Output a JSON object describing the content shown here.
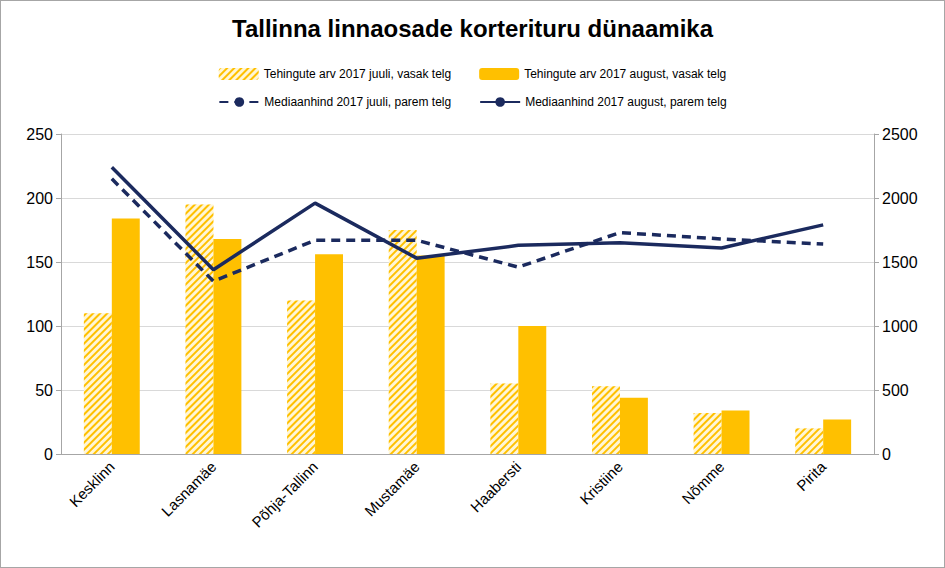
{
  "chart_data": {
    "type": "bar",
    "title": "Tallinna linnaosade korterituru dünaamika",
    "categories": [
      "Kesklinn",
      "Lasnamäe",
      "Põhja-Tallinn",
      "Mustamäe",
      "Haabersti",
      "Kristiine",
      "Nõmme",
      "Pirita"
    ],
    "series": [
      {
        "name": "Tehingute arv 2017 juuli, vasak telg",
        "type": "bar",
        "color": "#FFC000",
        "values": [
          110,
          195,
          120,
          175,
          55,
          53,
          32,
          20
        ]
      },
      {
        "name": "Tehingute arv 2017 august, vasak telg",
        "type": "bar",
        "color": "#FFC000",
        "values": [
          184,
          168,
          156,
          155,
          100,
          44,
          34,
          27
        ]
      },
      {
        "name": "Mediaanhind 2017 juuli, parem telg",
        "type": "line",
        "axis": "y2",
        "color": "#1B2A5E",
        "line_style": "dashed",
        "values": [
          2150,
          1350,
          1670,
          1670,
          1460,
          1730,
          1680,
          1640
        ]
      },
      {
        "name": "Mediaanhind 2017 august, parem telg",
        "type": "line",
        "axis": "y2",
        "color": "#1B2A5E",
        "line_style": "solid",
        "values": [
          2240,
          1440,
          1960,
          1530,
          1630,
          1650,
          1610,
          1790
        ]
      }
    ],
    "ylim": [
      0,
      250
    ],
    "yticks": [
      0,
      50,
      100,
      150,
      200,
      250
    ],
    "y2lim": [
      0,
      2500
    ],
    "y2ticks": [
      0,
      500,
      1000,
      1500,
      2000,
      2500
    ],
    "grid": true,
    "legend": "top"
  }
}
